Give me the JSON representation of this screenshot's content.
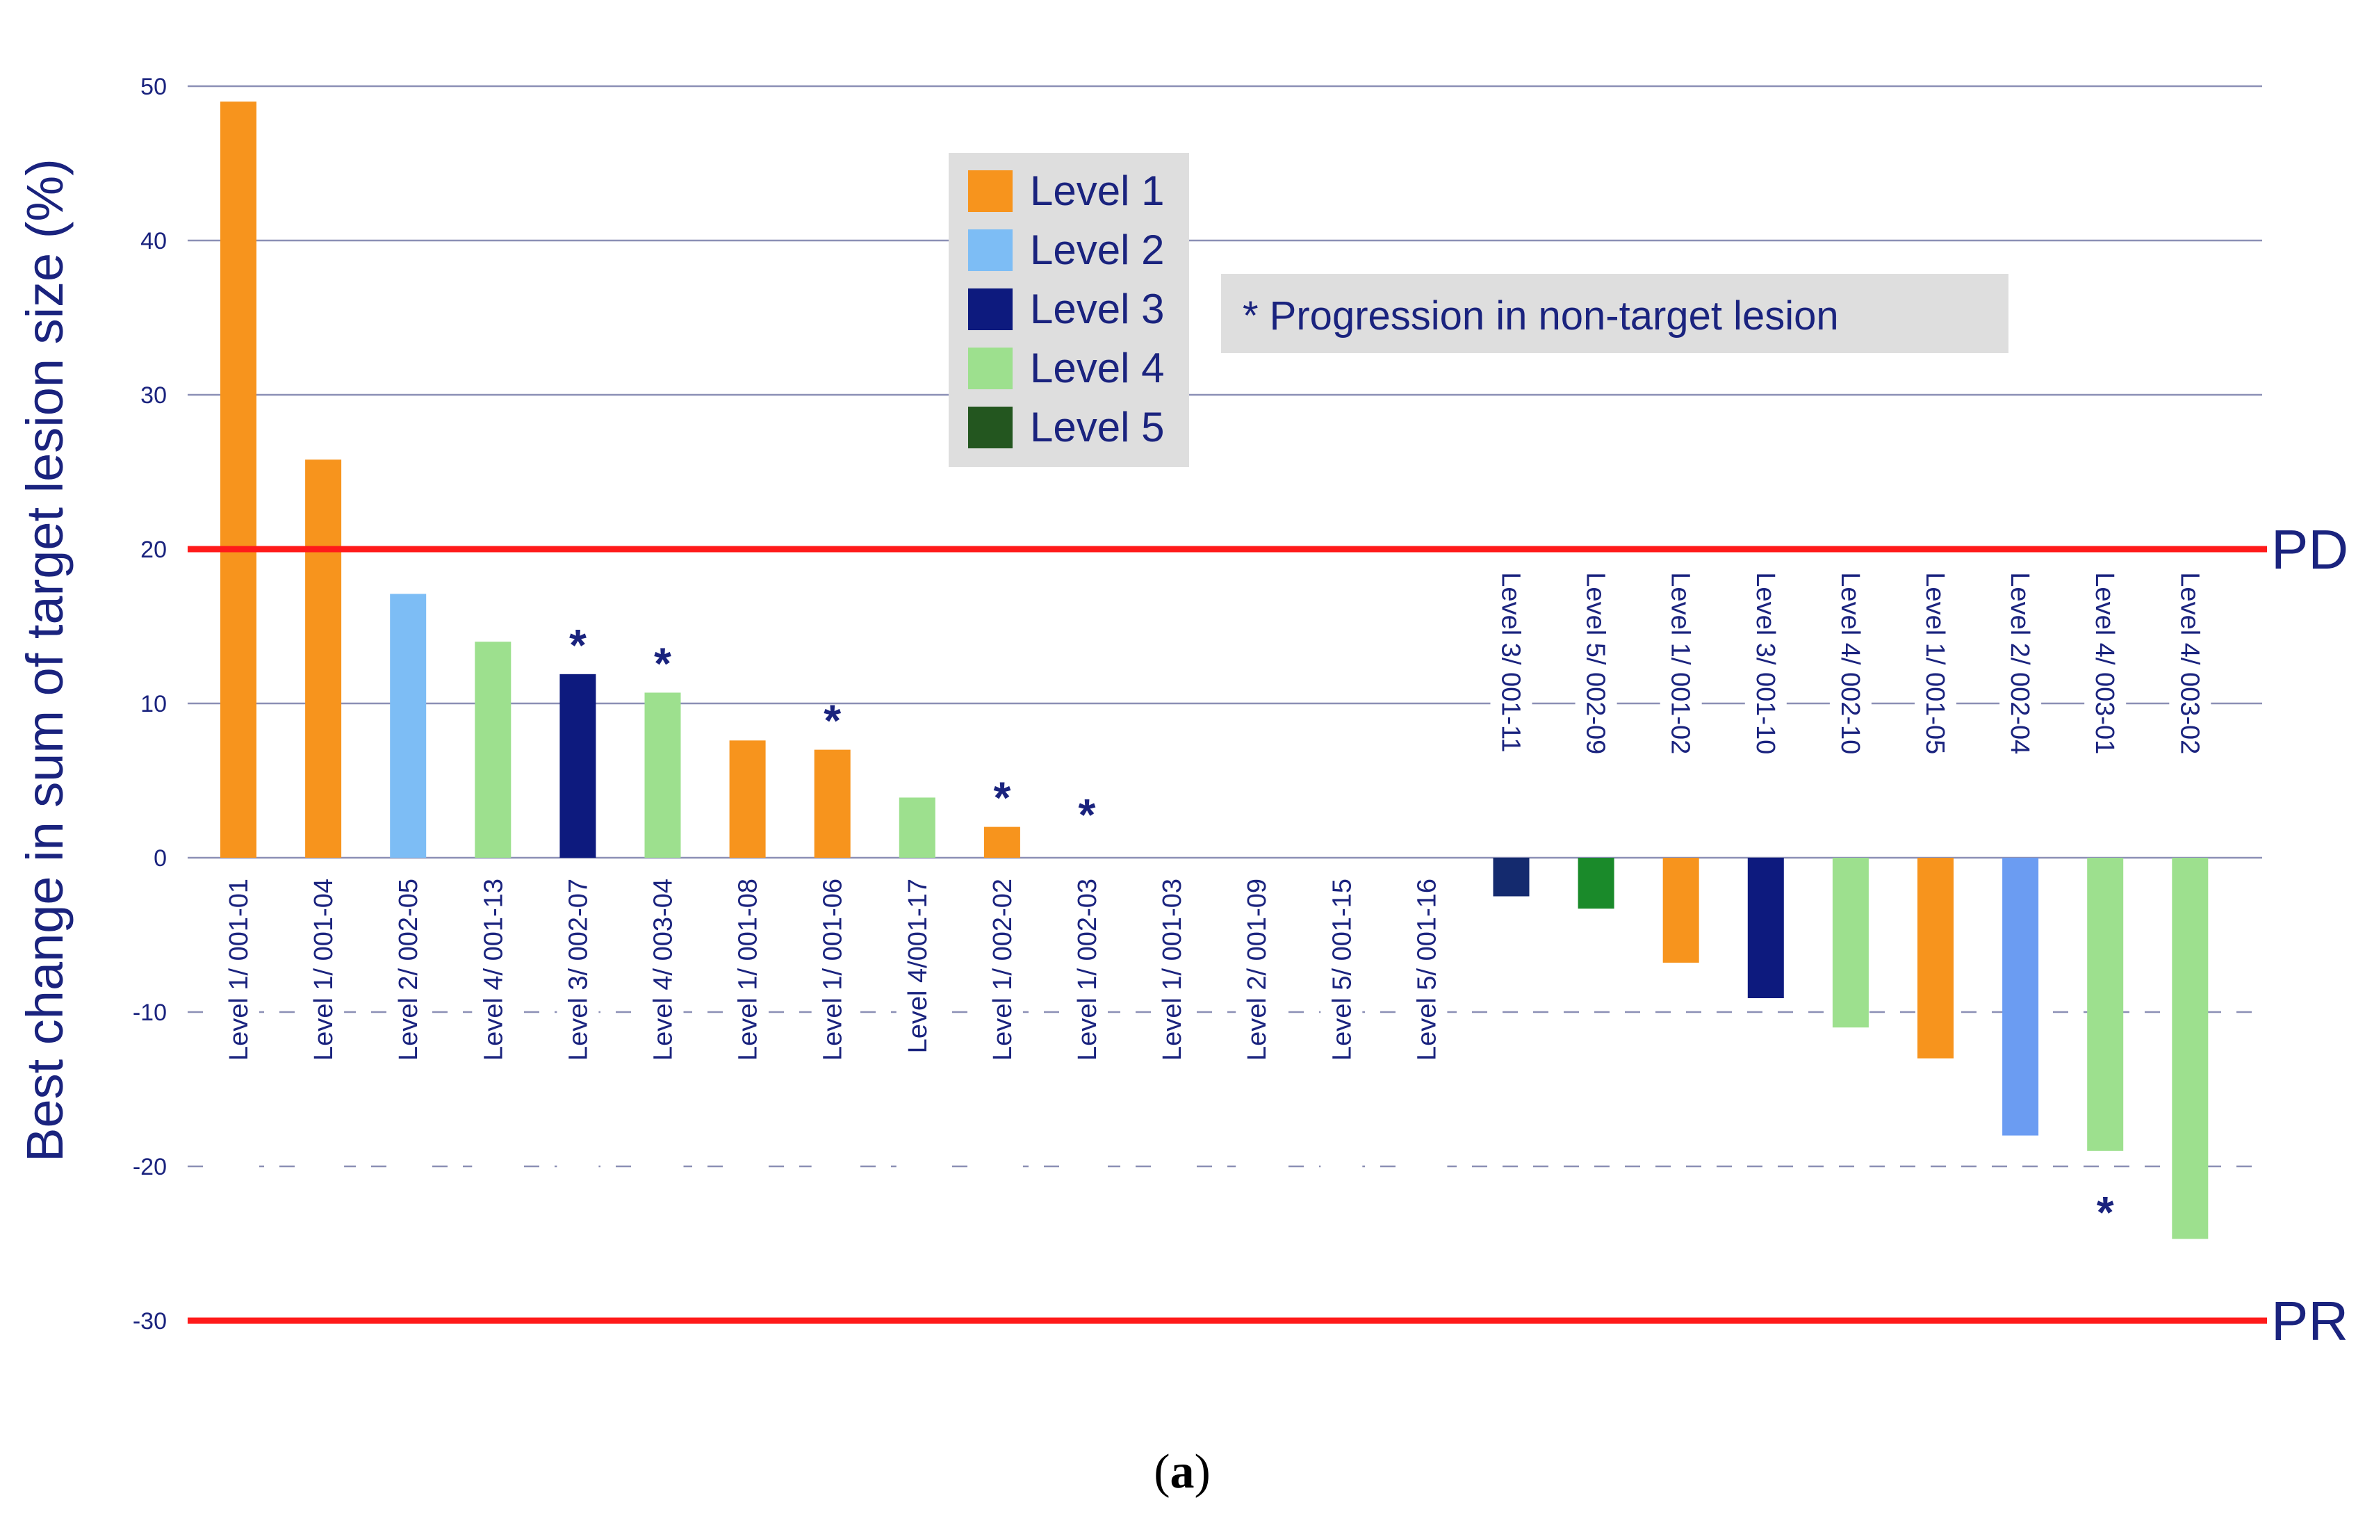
{
  "chart_data": {
    "type": "bar",
    "ylabel": "Best change in sum of target lesion size (%)",
    "ylim": [
      -30,
      50
    ],
    "yticks": [
      "50",
      "40",
      "30",
      "20",
      "10",
      "0",
      "-10",
      "-20",
      "-30"
    ],
    "reference_lines": [
      {
        "label": "PD",
        "value": 20
      },
      {
        "label": "PR",
        "value": -30
      }
    ],
    "categories": [
      "Level 1/ 001-01",
      "Level 1/ 001-04",
      "Level 2/ 002-05",
      "Level 4/ 001-13",
      "Level 3/ 002-07",
      "Level 4/ 003-04",
      "Level 1/ 001-08",
      "Level 1/ 001-06",
      "Level 4/001-17",
      "Level 1/ 002-02",
      "Level 1/ 002-03",
      "Level 1/ 001-03",
      "Level 2/ 001-09",
      "Level 5/ 001-15",
      "Level 5/ 001-16",
      "Level 3/ 001-11",
      "Level 5/ 002-09",
      "Level 1/ 001-02",
      "Level 3/ 001-10",
      "Level 4/ 002-10",
      "Level 1/ 001-05",
      "Level 2/ 002-04",
      "Level 4/ 003-01",
      "Level 4/ 003-02"
    ],
    "values": [
      49,
      25.8,
      17.1,
      14,
      11.9,
      10.7,
      7.6,
      7,
      3.9,
      2,
      0,
      0,
      0,
      0,
      0,
      -2.5,
      -3.3,
      -6.8,
      -9.1,
      -11,
      -13,
      -18,
      -19,
      -24.7
    ],
    "levels": [
      1,
      1,
      2,
      4,
      3,
      4,
      1,
      1,
      4,
      1,
      1,
      1,
      2,
      5,
      5,
      3,
      5,
      1,
      3,
      4,
      1,
      2,
      4,
      4
    ],
    "progression_non_target": [
      false,
      false,
      false,
      false,
      true,
      true,
      false,
      true,
      false,
      true,
      true,
      false,
      false,
      false,
      false,
      false,
      false,
      false,
      false,
      false,
      false,
      false,
      true,
      false
    ],
    "legend": {
      "placement": "top-center",
      "entries": [
        {
          "name": "Level 1",
          "color": "#f7941d"
        },
        {
          "name": "Level 2",
          "color": "#7dbdf5"
        },
        {
          "name": "Level 3",
          "color": "#0d1a7e"
        },
        {
          "name": "Level 4",
          "color": "#9de08e"
        },
        {
          "name": "Level 5",
          "color": "#23561f"
        }
      ]
    },
    "bar_colors": [
      "#f7941d",
      "#f7941d",
      "#7dbdf5",
      "#9de08e",
      "#0d1a7e",
      "#9de08e",
      "#f7941d",
      "#f7941d",
      "#9de08e",
      "#f7941d",
      "#f7941d",
      "#f7941d",
      "#7dbdf5",
      "#23561f",
      "#23561f",
      "#142a6e",
      "#1a8a2a",
      "#f7941d",
      "#0d1a7e",
      "#9de08e",
      "#f7941d",
      "#6b9cf2",
      "#9de08e",
      "#9de08e"
    ],
    "annotation": "* Progression in non-target lesion",
    "star_symbol": "*",
    "grid": true
  },
  "caption": {
    "open": "(",
    "letter": "a",
    "close": ")"
  }
}
